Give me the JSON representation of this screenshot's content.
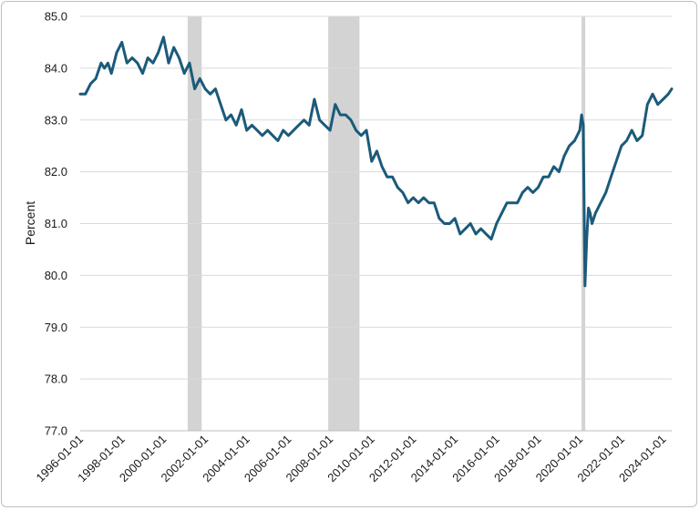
{
  "chart_data": {
    "type": "line",
    "title": "",
    "xlabel": "",
    "ylabel": "Percent",
    "ylim": [
      77.0,
      85.0
    ],
    "xlim": [
      "1996-01-01",
      "2024-06-01"
    ],
    "grid": "horizontal",
    "legend": "none",
    "y_ticks": [
      "85.0",
      "84.0",
      "83.0",
      "82.0",
      "81.0",
      "80.0",
      "79.0",
      "78.0",
      "77.0"
    ],
    "x_ticks": [
      "1996-01-01",
      "1998-01-01",
      "2000-01-01",
      "2002-01-01",
      "2004-01-01",
      "2006-01-01",
      "2008-01-01",
      "2010-01-01",
      "2012-01-01",
      "2014-01-01",
      "2016-01-01",
      "2018-01-01",
      "2020-01-01",
      "2022-01-01",
      "2024-01-01"
    ],
    "line_color": "#1b5a7a",
    "shade_color": "#d3d3d3",
    "recessions": [
      [
        "2001-03-01",
        "2001-11-01"
      ],
      [
        "2007-12-01",
        "2009-06-01"
      ],
      [
        "2020-02-01",
        "2020-04-01"
      ]
    ],
    "series": [
      {
        "x": [
          "1996-01-01",
          "1996-04-01",
          "1996-07-01",
          "1996-10-01",
          "1997-01-01",
          "1997-03-01",
          "1997-05-01",
          "1997-07-01",
          "1997-10-01",
          "1998-01-01",
          "1998-04-01",
          "1998-07-01",
          "1998-10-01",
          "1999-01-01",
          "1999-04-01",
          "1999-07-01",
          "1999-10-01",
          "2000-01-01",
          "2000-04-01",
          "2000-07-01",
          "2000-10-01",
          "2001-01-01",
          "2001-04-01",
          "2001-07-01",
          "2001-10-01",
          "2002-01-01",
          "2002-04-01",
          "2002-07-01",
          "2002-10-01",
          "2003-01-01",
          "2003-04-01",
          "2003-07-01",
          "2003-10-01",
          "2004-01-01",
          "2004-04-01",
          "2004-07-01",
          "2004-10-01",
          "2005-01-01",
          "2005-04-01",
          "2005-07-01",
          "2005-10-01",
          "2006-01-01",
          "2006-04-01",
          "2006-07-01",
          "2006-10-01",
          "2007-01-01",
          "2007-04-01",
          "2007-07-01",
          "2007-10-01",
          "2008-01-01",
          "2008-04-01",
          "2008-07-01",
          "2008-10-01",
          "2009-01-01",
          "2009-04-01",
          "2009-07-01",
          "2009-10-01",
          "2010-01-01",
          "2010-04-01",
          "2010-07-01",
          "2010-10-01",
          "2011-01-01",
          "2011-04-01",
          "2011-07-01",
          "2011-10-01",
          "2012-01-01",
          "2012-04-01",
          "2012-07-01",
          "2012-10-01",
          "2013-01-01",
          "2013-04-01",
          "2013-07-01",
          "2013-10-01",
          "2014-01-01",
          "2014-04-01",
          "2014-07-01",
          "2014-10-01",
          "2015-01-01",
          "2015-04-01",
          "2015-07-01",
          "2015-10-01",
          "2016-01-01",
          "2016-04-01",
          "2016-07-01",
          "2016-10-01",
          "2017-01-01",
          "2017-04-01",
          "2017-07-01",
          "2017-10-01",
          "2018-01-01",
          "2018-04-01",
          "2018-07-01",
          "2018-10-01",
          "2019-01-01",
          "2019-04-01",
          "2019-07-01",
          "2019-10-01",
          "2020-01-01",
          "2020-02-01",
          "2020-03-01",
          "2020-04-01",
          "2020-05-01",
          "2020-06-01",
          "2020-07-01",
          "2020-08-01",
          "2020-10-01",
          "2021-01-01",
          "2021-04-01",
          "2021-07-01",
          "2021-10-01",
          "2022-01-01",
          "2022-04-01",
          "2022-07-01",
          "2022-10-01",
          "2023-01-01",
          "2023-04-01",
          "2023-07-01",
          "2023-10-01",
          "2024-01-01",
          "2024-04-01",
          "2024-06-01"
        ],
        "values": [
          83.5,
          83.5,
          83.7,
          83.8,
          84.1,
          84.0,
          84.1,
          83.9,
          84.3,
          84.5,
          84.1,
          84.2,
          84.1,
          83.9,
          84.2,
          84.1,
          84.3,
          84.6,
          84.1,
          84.4,
          84.2,
          83.9,
          84.1,
          83.6,
          83.8,
          83.6,
          83.5,
          83.6,
          83.3,
          83.0,
          83.1,
          82.9,
          83.2,
          82.8,
          82.9,
          82.8,
          82.7,
          82.8,
          82.7,
          82.6,
          82.8,
          82.7,
          82.8,
          82.9,
          83.0,
          82.9,
          83.4,
          83.0,
          82.9,
          82.8,
          83.3,
          83.1,
          83.1,
          83.0,
          82.8,
          82.7,
          82.8,
          82.2,
          82.4,
          82.1,
          81.9,
          81.9,
          81.7,
          81.6,
          81.4,
          81.5,
          81.4,
          81.5,
          81.4,
          81.4,
          81.1,
          81.0,
          81.0,
          81.1,
          80.8,
          80.9,
          81.0,
          80.8,
          80.9,
          80.8,
          80.7,
          81.0,
          81.2,
          81.4,
          81.4,
          81.4,
          81.6,
          81.7,
          81.6,
          81.7,
          81.9,
          81.9,
          82.1,
          82.0,
          82.3,
          82.5,
          82.6,
          82.8,
          83.1,
          82.9,
          79.8,
          80.7,
          81.3,
          81.2,
          81.0,
          81.2,
          81.4,
          81.6,
          81.9,
          82.2,
          82.5,
          82.6,
          82.8,
          82.6,
          82.7,
          83.3,
          83.5,
          83.3,
          83.4,
          83.5,
          83.6
        ]
      }
    ]
  }
}
